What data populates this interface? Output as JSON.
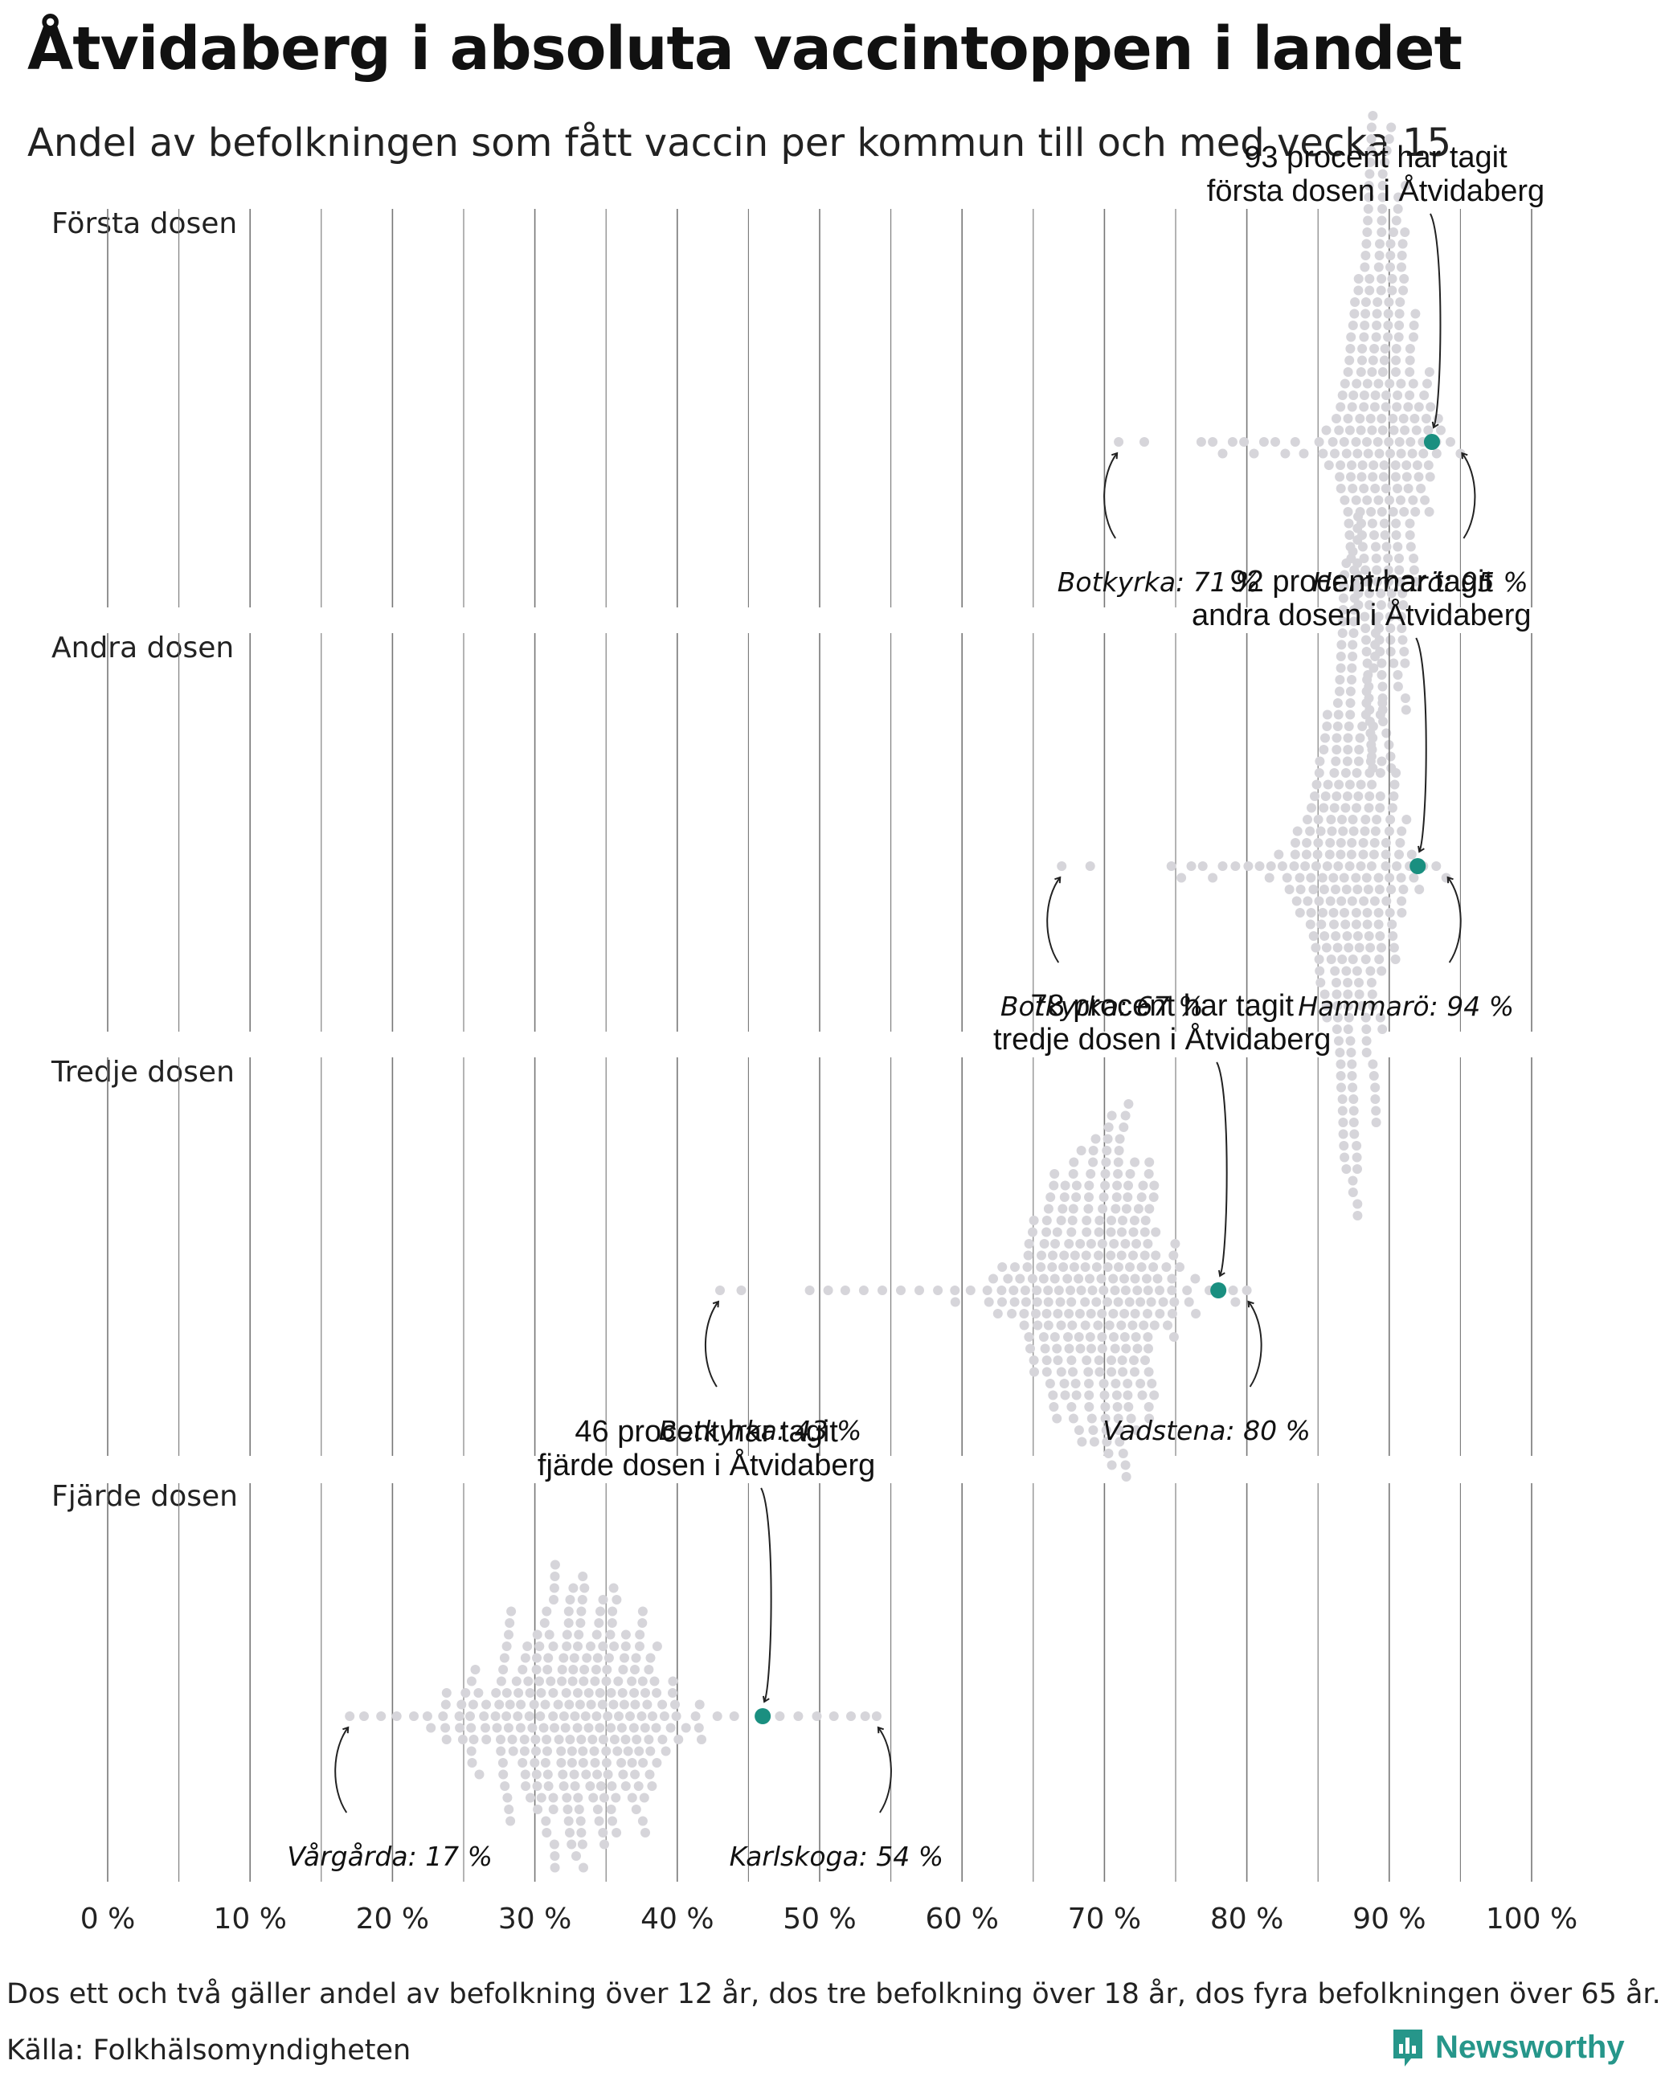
{
  "title": "Åtvidaberg i absoluta vaccintoppen i landet",
  "subtitle": "Andel av befolkningen som fått vaccin per kommun till och med vecka 15",
  "footer": {
    "note": "Dos ett och två gäller andel av befolkning över 12 år, dos tre befolkning över 18 år, dos fyra befolkningen över 65 år.",
    "source": "Källa: Folkhälsomyndigheten",
    "brand": "Newsworthy"
  },
  "colors": {
    "dot": "#d6d5da",
    "highlight": "#1a8f80",
    "grid": "#777777",
    "brand": "#26968a"
  },
  "chart_data": {
    "type": "beeswarm",
    "unit": "%",
    "xlim": [
      0,
      100
    ],
    "xticks": [
      0,
      10,
      20,
      30,
      40,
      50,
      60,
      70,
      80,
      90,
      100
    ],
    "xtick_labels": [
      "0 %",
      "10 %",
      "20 %",
      "30 %",
      "40 %",
      "50 %",
      "60 %",
      "70 %",
      "80 %",
      "90 %",
      "100 %"
    ],
    "panels": [
      {
        "label": "Första dosen",
        "highlight": {
          "name": "Åtvidaberg",
          "value": 93,
          "line1": "93 procent har tagit",
          "line2": "första dosen i Åtvidaberg"
        },
        "min": {
          "label": "Botkyrka: 71 %",
          "value": 71
        },
        "max": {
          "label": "Hammarö: 95 %",
          "value": 95
        },
        "distribution": {
          "count": 290,
          "center": 89.5,
          "spread": 2.4,
          "tail_low": [
            71,
            72.8,
            76.8,
            77.6,
            78.3,
            79.0,
            79.8,
            80.5,
            81.2,
            82.0,
            82.7,
            83.4,
            84.0
          ],
          "tail_high": [
            94.3,
            95
          ]
        }
      },
      {
        "label": "Andra dosen",
        "highlight": {
          "name": "Åtvidaberg",
          "value": 92,
          "line1": "92 procent har tagit",
          "line2": "andra dosen i Åtvidaberg"
        },
        "min": {
          "label": "Botkyrka: 67 %",
          "value": 67
        },
        "max": {
          "label": "Hammarö: 94 %",
          "value": 94
        },
        "distribution": {
          "count": 290,
          "center": 87.5,
          "spread": 2.8,
          "tail_low": [
            67,
            69,
            74.7,
            75.4,
            76.1,
            76.9,
            77.6,
            78.3,
            79.2,
            80.1,
            80.9,
            81.7,
            82.5
          ],
          "tail_high": [
            93.3,
            94
          ]
        }
      },
      {
        "label": "Tredje dosen",
        "highlight": {
          "name": "Åtvidaberg",
          "value": 78,
          "line1": "78 procent har tagit",
          "line2": "tredje dosen i Åtvidaberg"
        },
        "min": {
          "label": "Botkyrka: 43 %",
          "value": 43
        },
        "max": {
          "label": "Vadstena: 80 %",
          "value": 80
        },
        "distribution": {
          "count": 290,
          "center": 69.5,
          "spread": 4.6,
          "tail_low": [
            43,
            44.5,
            49.3,
            50.6,
            51.8,
            53.1,
            54.4,
            55.7,
            57.0,
            58.3,
            59.5,
            60.6
          ],
          "tail_high": [
            79.2,
            80
          ]
        }
      },
      {
        "label": "Fjärde dosen",
        "highlight": {
          "name": "Åtvidaberg",
          "value": 46,
          "line1": "46 procent har tagit",
          "line2": "fjärde dosen i Åtvidaberg"
        },
        "min": {
          "label": "Vårgårda: 17 %",
          "value": 17
        },
        "max": {
          "label": "Karlskoga: 54 %",
          "value": 54
        },
        "distribution": {
          "count": 290,
          "center": 33.0,
          "spread": 5.6,
          "tail_low": [
            17,
            18,
            19.2,
            20.3,
            21.5,
            22.7,
            23.8
          ],
          "tail_high": [
            47.2,
            48.5,
            49.8,
            51.0,
            52.2,
            53.2,
            54
          ]
        }
      }
    ]
  }
}
